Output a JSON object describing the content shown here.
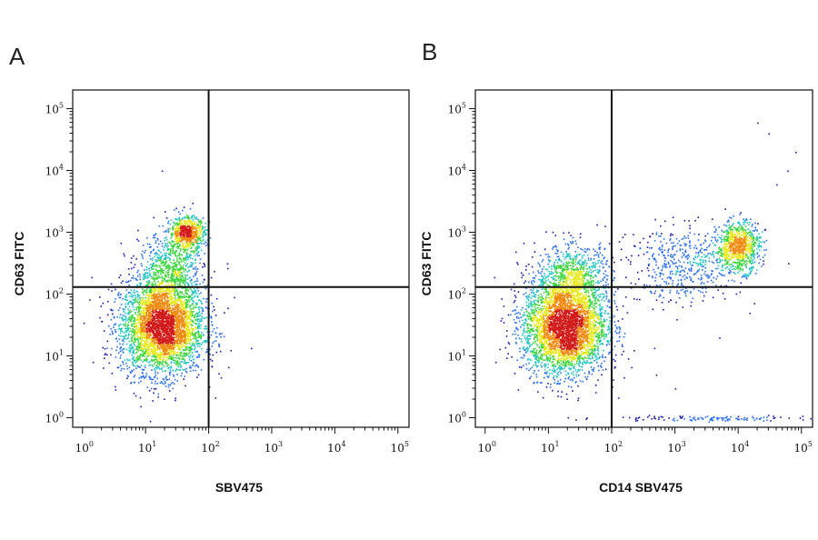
{
  "chart_data": [
    {
      "type": "scatter",
      "panel_label": "A",
      "xlabel": "SBV475",
      "ylabel": "CD63 FITC",
      "xscale": "log",
      "yscale": "log",
      "xlim": [
        0.7,
        150000
      ],
      "ylim": [
        0.7,
        200000
      ],
      "x_ticks": [
        1,
        10,
        100,
        1000,
        10000,
        100000
      ],
      "y_ticks": [
        1,
        10,
        100,
        1000,
        10000,
        100000
      ],
      "gates": {
        "x": 100,
        "y": 130
      },
      "coloring": "density",
      "colors": [
        "#1a1aa8",
        "#2a6ff0",
        "#22c4c4",
        "#3dd63d",
        "#e8e820",
        "#f08a10",
        "#d11a1a"
      ],
      "series": [
        {
          "x_center": 18,
          "y_center": 30,
          "x_spread": 0.33,
          "y_spread": 0.38,
          "count": 3600
        },
        {
          "x_center": 45,
          "y_center": 1000,
          "x_spread": 0.14,
          "y_spread": 0.13,
          "count": 650
        },
        {
          "x_center": 25,
          "y_center": 250,
          "x_spread": 0.25,
          "y_spread": 0.3,
          "count": 700
        }
      ],
      "outliers": [
        [
          20,
          2200
        ],
        [
          55,
          3000
        ],
        [
          40,
          2600
        ],
        [
          18,
          10000
        ],
        [
          250,
          90
        ]
      ]
    },
    {
      "type": "scatter",
      "panel_label": "B",
      "xlabel": "CD14 SBV475",
      "ylabel": "CD63 FITC",
      "xscale": "log",
      "yscale": "log",
      "xlim": [
        0.7,
        150000
      ],
      "ylim": [
        0.7,
        200000
      ],
      "x_ticks": [
        1,
        10,
        100,
        1000,
        10000,
        100000
      ],
      "y_ticks": [
        1,
        10,
        100,
        1000,
        10000,
        100000
      ],
      "gates": {
        "x": 100,
        "y": 130
      },
      "coloring": "density",
      "colors": [
        "#1a1aa8",
        "#2a6ff0",
        "#22c4c4",
        "#3dd63d",
        "#e8e820",
        "#f08a10",
        "#d11a1a"
      ],
      "series": [
        {
          "x_center": 18,
          "y_center": 30,
          "x_spread": 0.33,
          "y_spread": 0.38,
          "count": 3600
        },
        {
          "x_center": 10000,
          "y_center": 600,
          "x_spread": 0.17,
          "y_spread": 0.2,
          "count": 800
        },
        {
          "x_center": 25,
          "y_center": 200,
          "x_spread": 0.3,
          "y_spread": 0.25,
          "count": 700
        },
        {
          "x_center": 1500,
          "y_center": 300,
          "x_spread": 0.45,
          "y_spread": 0.3,
          "count": 500
        },
        {
          "x_center": 3000,
          "y_center": 1,
          "x_spread": 0.8,
          "y_spread": 0.02,
          "count": 120
        }
      ],
      "outliers": [
        [
          20000,
          60000
        ],
        [
          30000,
          40000
        ],
        [
          60000,
          10000
        ],
        [
          80000,
          20000
        ],
        [
          40000,
          6000
        ],
        [
          500,
          5
        ],
        [
          1000,
          3
        ],
        [
          5000,
          20
        ],
        [
          15000,
          50
        ]
      ]
    }
  ]
}
